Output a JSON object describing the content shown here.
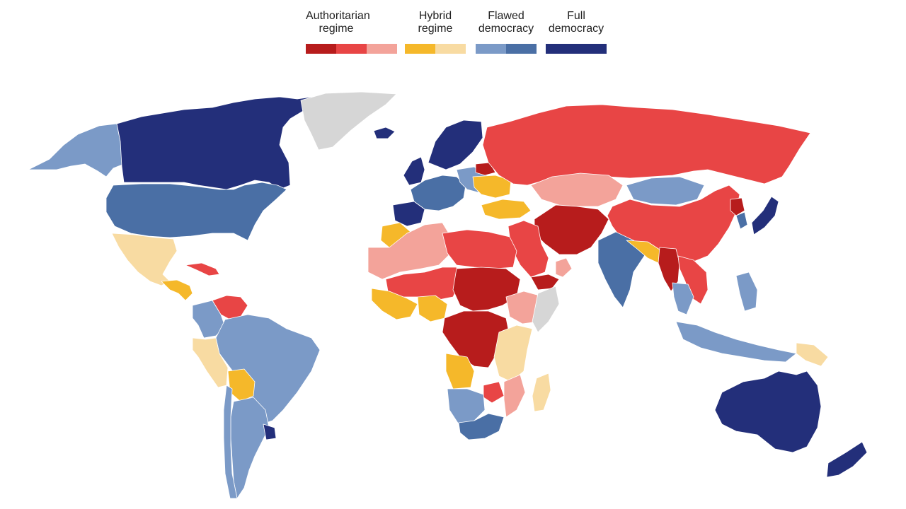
{
  "legend": {
    "categories": [
      {
        "label": "Authoritarian\nregime",
        "swatches": [
          "#b71c1c",
          "#e84545",
          "#f3a39a"
        ]
      },
      {
        "label": "Hybrid\nregime",
        "swatches": [
          "#f5b82a",
          "#f8dba2"
        ]
      },
      {
        "label": "Flawed\ndemocracy",
        "swatches": [
          "#7b9ac7",
          "#4a6fa5"
        ]
      },
      {
        "label": "Full\ndemocracy",
        "swatches": [
          "#232f7a"
        ]
      }
    ]
  },
  "colors": {
    "no_data": "#d6d6d6",
    "ocean": "#ffffff",
    "border": "#ffffff"
  },
  "regions": [
    {
      "name": "alaska",
      "category": "flawed-democracy-light"
    },
    {
      "name": "canada",
      "category": "full-democracy"
    },
    {
      "name": "greenland",
      "category": "no-data"
    },
    {
      "name": "usa",
      "category": "flawed-democracy-dark"
    },
    {
      "name": "mexico",
      "category": "hybrid-light"
    },
    {
      "name": "central-america",
      "category": "hybrid-dark"
    },
    {
      "name": "cuba",
      "category": "authoritarian-medium"
    },
    {
      "name": "venezuela",
      "category": "authoritarian-medium"
    },
    {
      "name": "colombia",
      "category": "flawed-democracy-light"
    },
    {
      "name": "brazil",
      "category": "flawed-democracy-light"
    },
    {
      "name": "peru",
      "category": "hybrid-light"
    },
    {
      "name": "bolivia",
      "category": "hybrid-dark"
    },
    {
      "name": "argentina",
      "category": "flawed-democracy-light"
    },
    {
      "name": "chile",
      "category": "flawed-democracy-light"
    },
    {
      "name": "uruguay",
      "category": "full-democracy"
    },
    {
      "name": "iceland",
      "category": "full-democracy"
    },
    {
      "name": "scandinavia",
      "category": "full-democracy"
    },
    {
      "name": "uk",
      "category": "full-democracy"
    },
    {
      "name": "western-europe",
      "category": "flawed-democracy-dark"
    },
    {
      "name": "iberia",
      "category": "full-democracy"
    },
    {
      "name": "eastern-europe",
      "category": "flawed-democracy-light"
    },
    {
      "name": "ukraine",
      "category": "hybrid-dark"
    },
    {
      "name": "belarus",
      "category": "authoritarian-dark"
    },
    {
      "name": "turkey",
      "category": "hybrid-dark"
    },
    {
      "name": "russia",
      "category": "authoritarian-medium"
    },
    {
      "name": "kazakhstan",
      "category": "authoritarian-light"
    },
    {
      "name": "mongolia",
      "category": "flawed-democracy-light"
    },
    {
      "name": "china",
      "category": "authoritarian-medium"
    },
    {
      "name": "north-korea",
      "category": "authoritarian-dark"
    },
    {
      "name": "japan",
      "category": "full-democracy"
    },
    {
      "name": "korea",
      "category": "flawed-democracy-dark"
    },
    {
      "name": "iran-afghanistan",
      "category": "authoritarian-dark"
    },
    {
      "name": "middle-east",
      "category": "authoritarian-medium"
    },
    {
      "name": "yemen",
      "category": "authoritarian-dark"
    },
    {
      "name": "oman",
      "category": "authoritarian-light"
    },
    {
      "name": "india",
      "category": "flawed-democracy-dark"
    },
    {
      "name": "nepal-bangladesh",
      "category": "hybrid-dark"
    },
    {
      "name": "myanmar",
      "category": "authoritarian-dark"
    },
    {
      "name": "southeast-asia",
      "category": "flawed-democracy-light"
    },
    {
      "name": "vietnam-laos",
      "category": "authoritarian-medium"
    },
    {
      "name": "indonesia",
      "category": "flawed-democracy-light"
    },
    {
      "name": "philippines",
      "category": "flawed-democracy-light"
    },
    {
      "name": "png",
      "category": "hybrid-light"
    },
    {
      "name": "australia",
      "category": "full-democracy"
    },
    {
      "name": "new-zealand",
      "category": "full-democracy"
    },
    {
      "name": "north-africa-west",
      "category": "authoritarian-light"
    },
    {
      "name": "morocco",
      "category": "hybrid-dark"
    },
    {
      "name": "libya-egypt",
      "category": "authoritarian-medium"
    },
    {
      "name": "sahel",
      "category": "authoritarian-medium"
    },
    {
      "name": "west-africa-coast",
      "category": "hybrid-dark"
    },
    {
      "name": "nigeria",
      "category": "hybrid-dark"
    },
    {
      "name": "sudan-chad",
      "category": "authoritarian-dark"
    },
    {
      "name": "ethiopia",
      "category": "authoritarian-light"
    },
    {
      "name": "somalia",
      "category": "no-data"
    },
    {
      "name": "central-africa",
      "category": "authoritarian-dark"
    },
    {
      "name": "east-africa",
      "category": "hybrid-light"
    },
    {
      "name": "angola",
      "category": "hybrid-dark"
    },
    {
      "name": "southern-africa",
      "category": "flawed-democracy-dark"
    },
    {
      "name": "namibia-botswana",
      "category": "flawed-democracy-light"
    },
    {
      "name": "mozambique",
      "category": "authoritarian-light"
    },
    {
      "name": "zimbabwe",
      "category": "authoritarian-medium"
    },
    {
      "name": "madagascar",
      "category": "hybrid-light"
    }
  ]
}
